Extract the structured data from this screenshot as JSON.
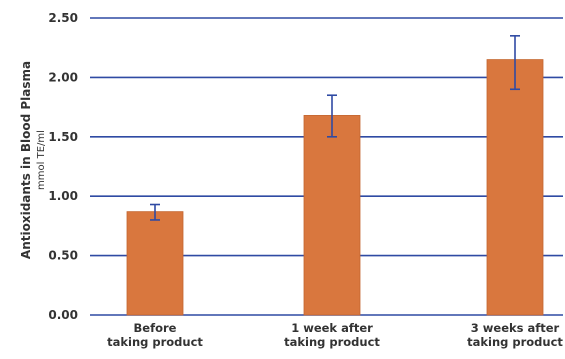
{
  "chart_data": {
    "type": "bar",
    "categories": [
      [
        "Before",
        "taking product"
      ],
      [
        "1 week after",
        "taking product"
      ],
      [
        "3 weeks after",
        "taking product"
      ]
    ],
    "values": [
      0.87,
      1.68,
      2.15
    ],
    "error_low": [
      0.8,
      1.5,
      1.9
    ],
    "error_high": [
      0.93,
      1.85,
      2.35
    ],
    "ylabel": "Antioxidants in Blood Plasma",
    "yunit": "mmol TE/ml",
    "ylim": [
      0,
      2.5
    ],
    "yticks": [
      "0.00",
      "0.50",
      "1.00",
      "1.50",
      "2.00",
      "2.50"
    ],
    "grid": true
  },
  "colors": {
    "bar": "#d9773e",
    "bar_edge": "#c4652f",
    "grid": "#2f4aa3",
    "error_bar": "#2f4aa3",
    "text": "#333333"
  }
}
